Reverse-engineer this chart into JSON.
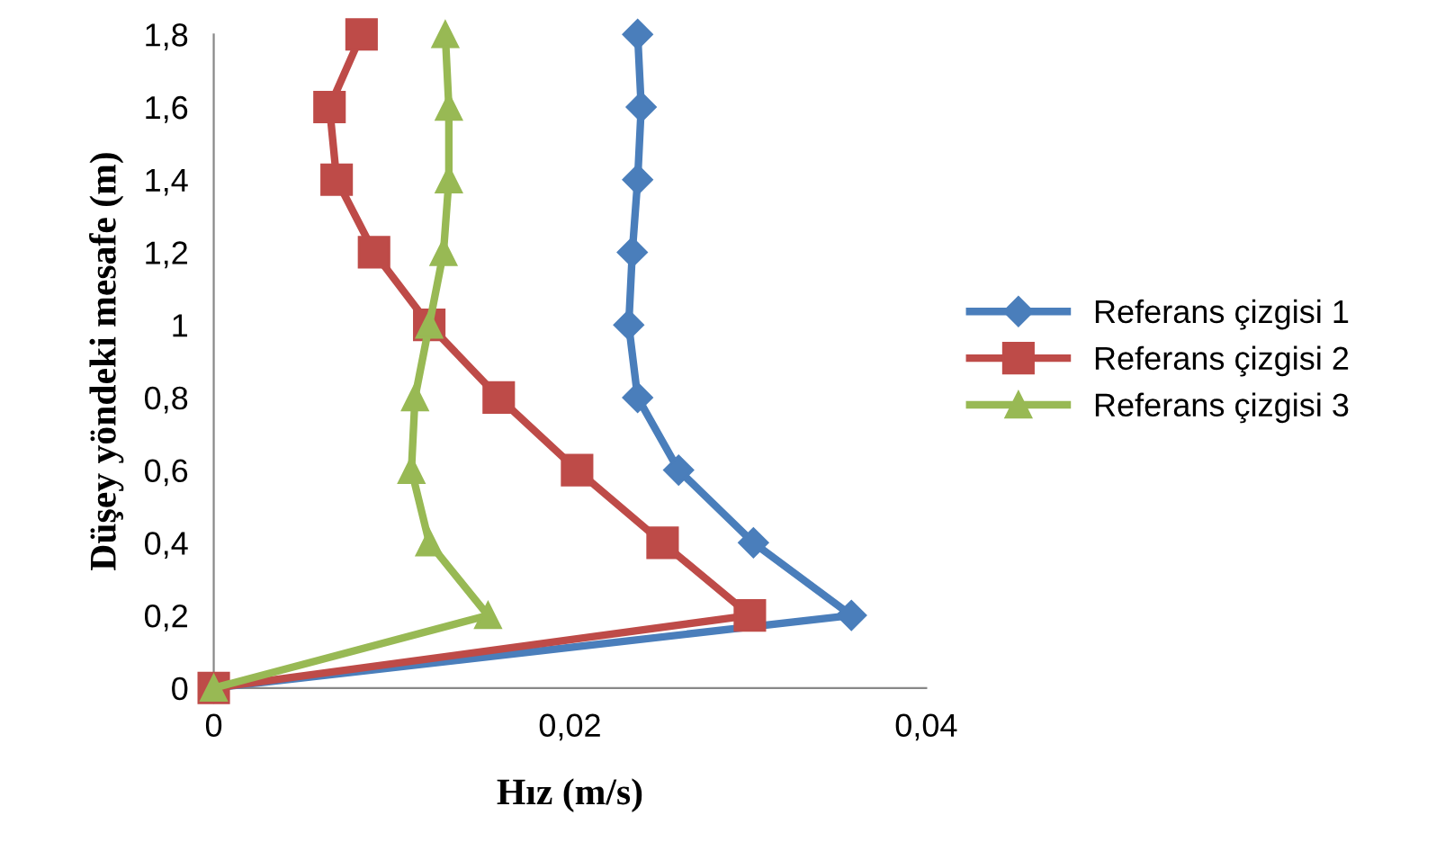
{
  "chart_data": {
    "type": "line",
    "xlabel": "Hız (m/s)",
    "ylabel": "Düşey yöndeki mesafe (m)",
    "xlim": [
      0,
      0.04
    ],
    "ylim": [
      0,
      1.8
    ],
    "xticks": [
      0,
      {
        "value": 0.02,
        "label": "0,02"
      },
      {
        "value": 0.04,
        "label": "0,04"
      }
    ],
    "yticks": [
      0,
      {
        "value": 0.2,
        "label": "0,2"
      },
      {
        "value": 0.4,
        "label": "0,4"
      },
      {
        "value": 0.6,
        "label": "0,6"
      },
      {
        "value": 0.8,
        "label": "0,8"
      },
      1,
      {
        "value": 1.2,
        "label": "1,2"
      },
      {
        "value": 1.4,
        "label": "1,4"
      },
      {
        "value": 1.6,
        "label": "1,6"
      },
      {
        "value": 1.8,
        "label": "1,8"
      }
    ],
    "grid": false,
    "legend": "right",
    "line_style": "solid",
    "series": [
      {
        "name": "Referans çizgisi 1",
        "color": "#4a7ebb",
        "marker": "diamond",
        "x": [
          0,
          0.0358,
          0.0303,
          0.0261,
          0.0238,
          0.0233,
          0.0235,
          0.0238,
          0.024,
          0.0238
        ],
        "values": [
          0,
          0.2,
          0.4,
          0.6,
          0.8,
          1.0,
          1.2,
          1.4,
          1.6,
          1.8
        ]
      },
      {
        "name": "Referans çizgisi 2",
        "color": "#be4b48",
        "marker": "square",
        "x": [
          0,
          0.0301,
          0.0252,
          0.0204,
          0.016,
          0.0121,
          0.009,
          0.0069,
          0.0065,
          0.0083
        ],
        "values": [
          0,
          0.2,
          0.4,
          0.6,
          0.8,
          1.0,
          1.2,
          1.4,
          1.6,
          1.8
        ]
      },
      {
        "name": "Referans çizgisi 3",
        "color": "#98b954",
        "marker": "triangle",
        "x": [
          0,
          0.0154,
          0.0121,
          0.0111,
          0.0113,
          0.0121,
          0.0129,
          0.0132,
          0.0132,
          0.013
        ],
        "values": [
          0,
          0.2,
          0.4,
          0.6,
          0.8,
          1.0,
          1.2,
          1.4,
          1.6,
          1.8
        ]
      }
    ]
  }
}
